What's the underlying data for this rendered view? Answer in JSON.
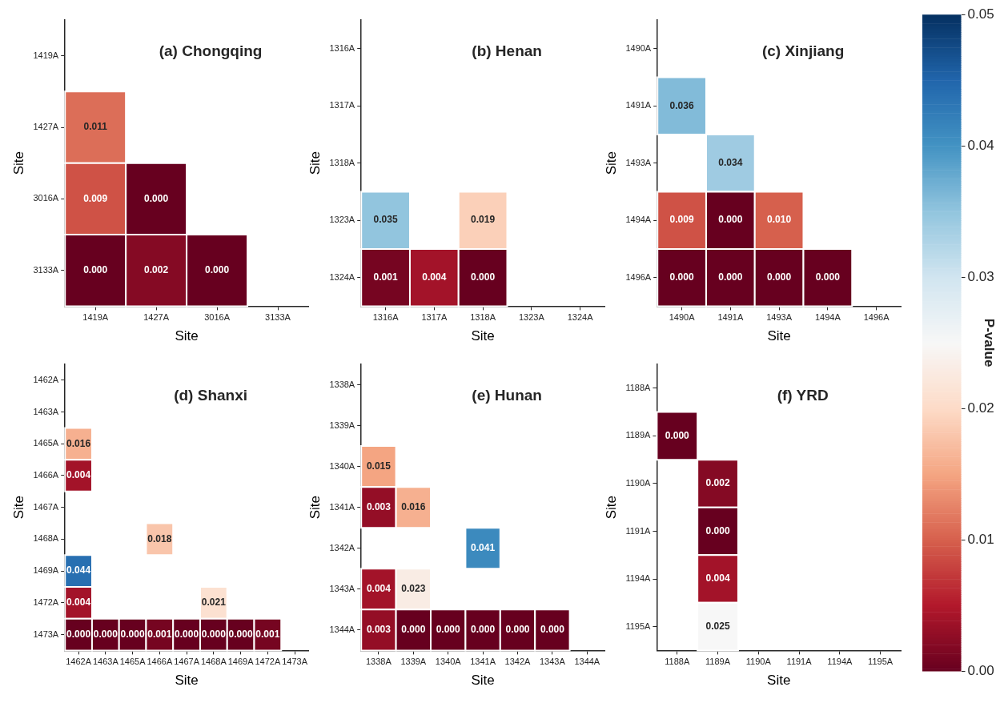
{
  "chart_data": [
    {
      "type": "heatmap",
      "title": "(a) Chongqing",
      "xlabel": "Site",
      "ylabel": "Site",
      "categories": [
        "1419A",
        "1427A",
        "3016A",
        "3133A"
      ],
      "y_categories": [
        "1419A",
        "1427A",
        "3016A",
        "3133A"
      ],
      "cells": [
        [
          null,
          null,
          null,
          null
        ],
        [
          0.011,
          null,
          null,
          null
        ],
        [
          0.009,
          0.0,
          null,
          null
        ],
        [
          0.0,
          0.002,
          0.0,
          null
        ]
      ],
      "cell_labels": [
        [
          null,
          null,
          null,
          null
        ],
        [
          "0.011",
          null,
          null,
          null
        ],
        [
          "0.009",
          "0.000",
          null,
          null
        ],
        [
          "0.000",
          "0.002",
          "0.000",
          null
        ]
      ]
    },
    {
      "type": "heatmap",
      "title": "(b) Henan",
      "xlabel": "Site",
      "ylabel": "Site",
      "categories": [
        "1316A",
        "1317A",
        "1318A",
        "1323A",
        "1324A"
      ],
      "y_categories": [
        "1316A",
        "1317A",
        "1318A",
        "1323A",
        "1324A"
      ],
      "cells": [
        [
          null,
          null,
          null,
          null,
          null
        ],
        [
          null,
          null,
          null,
          null,
          null
        ],
        [
          null,
          null,
          null,
          null,
          null
        ],
        [
          0.035,
          null,
          0.019,
          null,
          null
        ],
        [
          0.001,
          0.004,
          0.0,
          null,
          null
        ]
      ],
      "cell_labels": [
        [
          null,
          null,
          null,
          null,
          null
        ],
        [
          null,
          null,
          null,
          null,
          null
        ],
        [
          null,
          null,
          null,
          null,
          null
        ],
        [
          "0.035",
          null,
          "0.019",
          null,
          null
        ],
        [
          "0.001",
          "0.004",
          "0.000",
          null,
          null
        ]
      ]
    },
    {
      "type": "heatmap",
      "title": "(c) Xinjiang",
      "xlabel": "Site",
      "ylabel": "Site",
      "categories": [
        "1490A",
        "1491A",
        "1493A",
        "1494A",
        "1496A"
      ],
      "y_categories": [
        "1490A",
        "1491A",
        "1493A",
        "1494A",
        "1496A"
      ],
      "cells": [
        [
          null,
          null,
          null,
          null,
          null
        ],
        [
          0.036,
          null,
          null,
          null,
          null
        ],
        [
          null,
          0.034,
          null,
          null,
          null
        ],
        [
          0.009,
          0.0,
          0.01,
          null,
          null
        ],
        [
          0.0,
          0.0,
          0.0,
          0.0,
          null
        ]
      ],
      "cell_labels": [
        [
          null,
          null,
          null,
          null,
          null
        ],
        [
          "0.036",
          null,
          null,
          null,
          null
        ],
        [
          null,
          "0.034",
          null,
          null,
          null
        ],
        [
          "0.009",
          "0.000",
          "0.010",
          null,
          null
        ],
        [
          "0.000",
          "0.000",
          "0.000",
          "0.000",
          null
        ]
      ]
    },
    {
      "type": "heatmap",
      "title": "(d) Shanxi",
      "xlabel": "Site",
      "ylabel": "Site",
      "categories": [
        "1462A",
        "1463A",
        "1465A",
        "1466A",
        "1467A",
        "1468A",
        "1469A",
        "1472A",
        "1473A"
      ],
      "y_categories": [
        "1462A",
        "1463A",
        "1465A",
        "1466A",
        "1467A",
        "1468A",
        "1469A",
        "1472A",
        "1473A"
      ],
      "cells": [
        [
          null,
          null,
          null,
          null,
          null,
          null,
          null,
          null,
          null
        ],
        [
          null,
          null,
          null,
          null,
          null,
          null,
          null,
          null,
          null
        ],
        [
          0.016,
          null,
          null,
          null,
          null,
          null,
          null,
          null,
          null
        ],
        [
          0.004,
          null,
          null,
          null,
          null,
          null,
          null,
          null,
          null
        ],
        [
          null,
          null,
          null,
          null,
          null,
          null,
          null,
          null,
          null
        ],
        [
          null,
          null,
          null,
          0.018,
          null,
          null,
          null,
          null,
          null
        ],
        [
          0.044,
          null,
          null,
          null,
          null,
          null,
          null,
          null,
          null
        ],
        [
          0.004,
          null,
          null,
          null,
          null,
          0.021,
          null,
          null,
          null
        ],
        [
          0.0,
          0.0,
          0.0,
          0.001,
          0.0,
          0.0,
          0.0,
          0.001,
          null
        ]
      ],
      "cell_labels": [
        [
          null,
          null,
          null,
          null,
          null,
          null,
          null,
          null,
          null
        ],
        [
          null,
          null,
          null,
          null,
          null,
          null,
          null,
          null,
          null
        ],
        [
          "0.016",
          null,
          null,
          null,
          null,
          null,
          null,
          null,
          null
        ],
        [
          "0.004",
          null,
          null,
          null,
          null,
          null,
          null,
          null,
          null
        ],
        [
          null,
          null,
          null,
          null,
          null,
          null,
          null,
          null,
          null
        ],
        [
          null,
          null,
          null,
          "0.018",
          null,
          null,
          null,
          null,
          null
        ],
        [
          "0.044",
          null,
          null,
          null,
          null,
          null,
          null,
          null,
          null
        ],
        [
          "0.004",
          null,
          null,
          null,
          null,
          "0.021",
          null,
          null,
          null
        ],
        [
          "0.000",
          "0.000",
          "0.000",
          "0.001",
          "0.000",
          "0.000",
          "0.000",
          "0.001",
          null
        ]
      ]
    },
    {
      "type": "heatmap",
      "title": "(e) Hunan",
      "xlabel": "Site",
      "ylabel": "Site",
      "categories": [
        "1338A",
        "1339A",
        "1340A",
        "1341A",
        "1342A",
        "1343A",
        "1344A"
      ],
      "y_categories": [
        "1338A",
        "1339A",
        "1340A",
        "1341A",
        "1342A",
        "1343A",
        "1344A"
      ],
      "cells": [
        [
          null,
          null,
          null,
          null,
          null,
          null,
          null
        ],
        [
          null,
          null,
          null,
          null,
          null,
          null,
          null
        ],
        [
          0.015,
          null,
          null,
          null,
          null,
          null,
          null
        ],
        [
          0.003,
          0.016,
          null,
          null,
          null,
          null,
          null
        ],
        [
          null,
          null,
          null,
          0.041,
          null,
          null,
          null
        ],
        [
          0.004,
          0.023,
          null,
          null,
          null,
          null,
          null
        ],
        [
          0.003,
          0.0,
          0.0,
          0.0,
          0.0,
          0.0,
          null
        ]
      ],
      "cell_labels": [
        [
          null,
          null,
          null,
          null,
          null,
          null,
          null
        ],
        [
          null,
          null,
          null,
          null,
          null,
          null,
          null
        ],
        [
          "0.015",
          null,
          null,
          null,
          null,
          null,
          null
        ],
        [
          "0.003",
          "0.016",
          null,
          null,
          null,
          null,
          null
        ],
        [
          null,
          null,
          null,
          "0.041",
          null,
          null,
          null
        ],
        [
          "0.004",
          "0.023",
          null,
          null,
          null,
          null,
          null
        ],
        [
          "0.003",
          "0.000",
          "0.000",
          "0.000",
          "0.000",
          "0.000",
          null
        ]
      ]
    },
    {
      "type": "heatmap",
      "title": "(f) YRD",
      "xlabel": "Site",
      "ylabel": "Site",
      "categories": [
        "1188A",
        "1189A",
        "1190A",
        "1191A",
        "1194A",
        "1195A"
      ],
      "y_categories": [
        "1188A",
        "1189A",
        "1190A",
        "1191A",
        "1194A",
        "1195A"
      ],
      "clim": [
        0,
        0.05
      ],
      "cticks": [
        {
          "value": 0,
          "label": "0.00"
        },
        0.01,
        0.02,
        0.03,
        0.04,
        0.05
      ],
      "clabel": "P-value",
      "cells": [
        [
          null,
          null,
          null,
          null,
          null,
          null
        ],
        [
          0.0,
          null,
          null,
          null,
          null,
          null
        ],
        [
          null,
          0.002,
          null,
          null,
          null,
          null
        ],
        [
          null,
          0.0,
          null,
          null,
          null,
          null
        ],
        [
          null,
          0.004,
          null,
          null,
          null,
          null
        ],
        [
          null,
          0.025,
          null,
          null,
          null,
          null
        ]
      ],
      "cell_labels": [
        [
          null,
          null,
          null,
          null,
          null,
          null
        ],
        [
          "0.000",
          null,
          null,
          null,
          null,
          null
        ],
        [
          null,
          "0.002",
          null,
          null,
          null,
          null
        ],
        [
          null,
          "0.000",
          null,
          null,
          null,
          null
        ],
        [
          null,
          "0.004",
          null,
          null,
          null,
          null
        ],
        [
          null,
          "0.025",
          null,
          null,
          null,
          null
        ]
      ]
    }
  ]
}
